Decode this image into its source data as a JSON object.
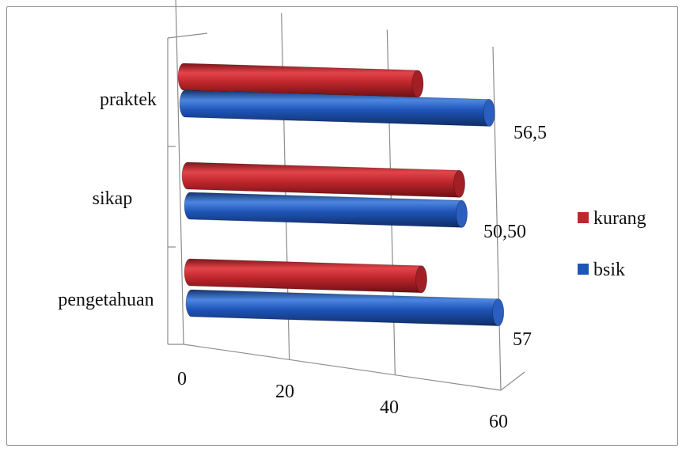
{
  "chart_data": {
    "type": "bar",
    "orientation": "horizontal",
    "style": "3d-cylinder",
    "categories": [
      "pengetahuan",
      "sikap",
      "praktek"
    ],
    "series": [
      {
        "name": "kurang",
        "color": "#c0272d",
        "values": [
          43,
          50.5,
          43.5
        ]
      },
      {
        "name": "bsik",
        "color": "#1f55b8",
        "values": [
          57,
          50.5,
          56.5
        ]
      }
    ],
    "data_labels": [
      "57",
      "50,50",
      "56,5"
    ],
    "x_ticks": [
      "0",
      "20",
      "40",
      "60"
    ],
    "xlim": [
      0,
      60
    ],
    "grid": true,
    "legend_position": "right"
  }
}
